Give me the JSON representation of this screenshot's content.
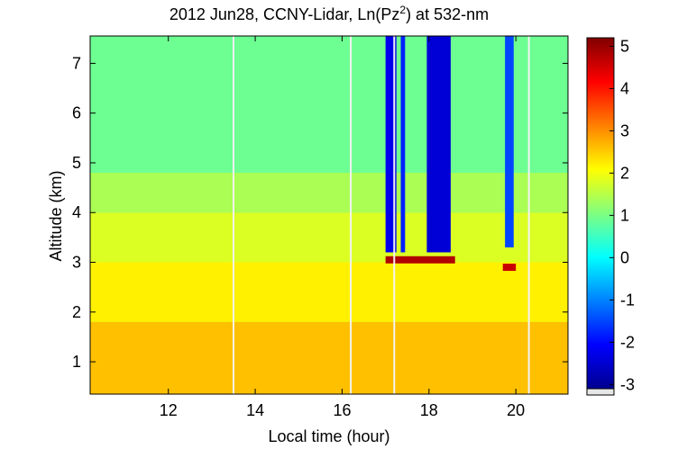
{
  "chart_data": {
    "type": "heatmap",
    "title": "2012 Jun28, CCNY-Lidar, Ln(Pz",
    "title_superscript": "2",
    "title_suffix": ") at 532-nm",
    "xlabel": "Local time (hour)",
    "ylabel": "Altitude (km)",
    "xlim": [
      10.2,
      21.2
    ],
    "ylim": [
      0.35,
      7.55
    ],
    "x_ticks": [
      12,
      14,
      16,
      18,
      20
    ],
    "y_ticks": [
      1,
      2,
      3,
      4,
      5,
      6,
      7
    ],
    "colorbar": {
      "colormap": "jet",
      "range": [
        -3.1,
        5.2
      ],
      "ticks": [
        -3,
        -2,
        -1,
        0,
        1,
        2,
        3,
        4,
        5
      ]
    },
    "layers": [
      {
        "y_from": 0.35,
        "y_to": 1.8,
        "value": 2.6
      },
      {
        "y_from": 1.8,
        "y_to": 3.0,
        "value": 2.2
      },
      {
        "y_from": 3.0,
        "y_to": 4.0,
        "value": 1.8
      },
      {
        "y_from": 4.0,
        "y_to": 4.8,
        "value": 1.4
      },
      {
        "y_from": 4.8,
        "y_to": 7.55,
        "value": 0.9
      }
    ],
    "cloud_layer": {
      "x_from": 17.0,
      "x_to": 18.6,
      "altitude": 3.05,
      "value": 4.8
    },
    "cloud_layer_2": {
      "x_from": 19.7,
      "x_to": 20.0,
      "altitude": 2.9,
      "value": 4.6
    },
    "low_signal_columns": [
      {
        "x_from": 17.0,
        "x_to": 17.25,
        "y_from": 3.2,
        "value": -2.2
      },
      {
        "x_from": 17.35,
        "x_to": 17.45,
        "y_from": 3.2,
        "value": -1.8
      },
      {
        "x_from": 17.95,
        "x_to": 18.5,
        "y_from": 3.2,
        "value": -2.4
      },
      {
        "x_from": 19.75,
        "x_to": 19.95,
        "y_from": 3.3,
        "value": -1.5
      }
    ],
    "gaps_x": [
      13.5,
      16.2,
      17.2,
      20.3
    ]
  }
}
